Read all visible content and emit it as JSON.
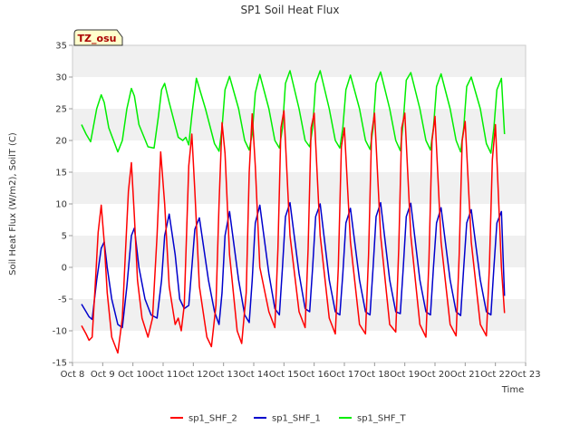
{
  "chart_data": {
    "type": "line",
    "title": "SP1 Soil Heat Flux",
    "xlabel": "Time",
    "ylabel": "Soil Heat Flux (W/m2), SoilT (C)",
    "ylim": [
      -15,
      35
    ],
    "yticks": [
      -15,
      -10,
      -5,
      0,
      5,
      10,
      15,
      20,
      25,
      30,
      35
    ],
    "xlim": [
      0,
      15
    ],
    "xticks": [
      0,
      1,
      2,
      3,
      4,
      5,
      6,
      7,
      8,
      9,
      10,
      11,
      12,
      13,
      14,
      15
    ],
    "xtick_labels": [
      "Oct 8",
      "Oct 9",
      "Oct 10",
      "Oct 11",
      "Oct 12",
      "Oct 13",
      "Oct 14",
      "Oct 15",
      "Oct 16",
      "Oct 17",
      "Oct 18",
      "Oct 19",
      "Oct 20",
      "Oct 21",
      "Oct 22",
      "Oct 23"
    ],
    "annotation": "TZ_osu",
    "grid": "horizontal bands",
    "legend_position": "bottom",
    "series": [
      {
        "name": "sp1_SHF_2",
        "color": "#ff0000",
        "x": [
          0.3,
          0.45,
          0.55,
          0.65,
          0.75,
          0.85,
          0.95,
          1.05,
          1.15,
          1.3,
          1.5,
          1.65,
          1.75,
          1.85,
          1.95,
          2.05,
          2.15,
          2.3,
          2.5,
          2.65,
          2.8,
          2.92,
          3.05,
          3.2,
          3.4,
          3.5,
          3.6,
          3.7,
          3.85,
          3.95,
          4.05,
          4.2,
          4.45,
          4.6,
          4.75,
          4.85,
          4.95,
          5.05,
          5.2,
          5.45,
          5.6,
          5.75,
          5.85,
          5.95,
          6.05,
          6.2,
          6.5,
          6.7,
          6.8,
          6.9,
          7.0,
          7.2,
          7.5,
          7.7,
          7.8,
          7.9,
          8.0,
          8.2,
          8.5,
          8.7,
          8.8,
          8.9,
          9.0,
          9.2,
          9.5,
          9.7,
          9.8,
          9.9,
          10.0,
          10.2,
          10.5,
          10.7,
          10.8,
          10.9,
          11.0,
          11.2,
          11.5,
          11.7,
          11.8,
          11.9,
          12.0,
          12.2,
          12.5,
          12.7,
          12.8,
          12.9,
          13.0,
          13.2,
          13.5,
          13.7,
          13.8,
          13.9,
          14.0,
          14.2,
          14.3
        ],
        "values": [
          -9.2,
          -10.5,
          -11.5,
          -11.0,
          -3.0,
          5.5,
          9.8,
          4.0,
          -4.0,
          -11.0,
          -13.5,
          -8.0,
          2.0,
          12.0,
          16.5,
          8.0,
          -2.0,
          -8.0,
          -11.0,
          -8.0,
          5.0,
          18.2,
          10.0,
          -3.0,
          -9.0,
          -8.0,
          -10.0,
          -6.0,
          16.0,
          21.0,
          12.0,
          -3.0,
          -11.0,
          -12.5,
          -6.0,
          10.0,
          22.8,
          18.0,
          2.0,
          -10.0,
          -12.0,
          -4.0,
          15.0,
          24.2,
          16.0,
          0.0,
          -7.0,
          -9.5,
          3.0,
          22.0,
          24.7,
          5.0,
          -7.0,
          -9.5,
          3.0,
          22.0,
          24.3,
          5.0,
          -8.0,
          -10.5,
          0.0,
          19.0,
          22.0,
          4.0,
          -9.0,
          -10.5,
          2.0,
          21.0,
          24.3,
          5.0,
          -9.0,
          -10.2,
          3.0,
          22.0,
          24.3,
          5.0,
          -9.0,
          -11.0,
          1.0,
          20.0,
          23.8,
          4.0,
          -9.0,
          -10.8,
          2.0,
          20.0,
          23.0,
          4.0,
          -9.0,
          -10.8,
          0.0,
          17.0,
          22.5,
          0.0,
          -7.2
        ]
      },
      {
        "name": "sp1_SHF_1",
        "color": "#0000cc",
        "x": [
          0.3,
          0.45,
          0.55,
          0.65,
          0.8,
          0.95,
          1.05,
          1.15,
          1.3,
          1.5,
          1.65,
          1.8,
          1.95,
          2.05,
          2.2,
          2.4,
          2.6,
          2.8,
          2.95,
          3.05,
          3.2,
          3.4,
          3.55,
          3.7,
          3.85,
          3.95,
          4.05,
          4.2,
          4.5,
          4.7,
          4.85,
          4.95,
          5.05,
          5.2,
          5.5,
          5.7,
          5.85,
          5.95,
          6.05,
          6.2,
          6.5,
          6.7,
          6.85,
          6.95,
          7.05,
          7.2,
          7.5,
          7.7,
          7.85,
          7.95,
          8.05,
          8.2,
          8.5,
          8.7,
          8.85,
          8.95,
          9.05,
          9.2,
          9.5,
          9.7,
          9.85,
          9.95,
          10.05,
          10.2,
          10.5,
          10.7,
          10.85,
          10.95,
          11.05,
          11.2,
          11.5,
          11.7,
          11.85,
          11.95,
          12.05,
          12.2,
          12.5,
          12.7,
          12.85,
          12.95,
          13.05,
          13.2,
          13.5,
          13.7,
          13.85,
          13.95,
          14.05,
          14.2,
          14.3
        ],
        "values": [
          -5.8,
          -7.0,
          -7.8,
          -8.2,
          -2.0,
          3.0,
          4.0,
          0.0,
          -5.0,
          -9.0,
          -9.5,
          -3.0,
          5.0,
          6.2,
          0.0,
          -5.0,
          -7.5,
          -8.0,
          -2.0,
          5.0,
          8.4,
          2.0,
          -5.0,
          -6.5,
          -6.0,
          0.0,
          6.0,
          7.8,
          -2.0,
          -7.0,
          -9.0,
          -4.0,
          5.0,
          8.8,
          -2.0,
          -7.5,
          -8.7,
          -2.0,
          7.0,
          9.8,
          -1.0,
          -6.5,
          -7.5,
          0.0,
          8.0,
          10.2,
          -1.0,
          -6.5,
          -7.0,
          0.0,
          8.0,
          10.0,
          -2.0,
          -7.0,
          -7.5,
          -1.0,
          7.0,
          9.3,
          -2.0,
          -7.0,
          -7.5,
          0.0,
          8.0,
          10.2,
          -2.0,
          -7.0,
          -7.3,
          0.0,
          8.0,
          10.1,
          -2.0,
          -7.0,
          -7.5,
          0.0,
          7.0,
          9.4,
          -2.0,
          -7.0,
          -7.6,
          0.0,
          7.0,
          9.1,
          -2.0,
          -7.0,
          -7.5,
          0.0,
          7.0,
          8.8,
          -4.5
        ]
      },
      {
        "name": "sp1_SHF_T",
        "color": "#00ee00",
        "x": [
          0.3,
          0.45,
          0.6,
          0.8,
          0.95,
          1.05,
          1.2,
          1.5,
          1.65,
          1.8,
          1.95,
          2.05,
          2.2,
          2.5,
          2.7,
          2.85,
          2.95,
          3.05,
          3.2,
          3.5,
          3.65,
          3.75,
          3.85,
          3.95,
          4.1,
          4.4,
          4.7,
          4.85,
          4.95,
          5.05,
          5.2,
          5.5,
          5.7,
          5.85,
          5.95,
          6.05,
          6.2,
          6.5,
          6.7,
          6.85,
          6.95,
          7.05,
          7.2,
          7.5,
          7.7,
          7.85,
          7.95,
          8.05,
          8.2,
          8.5,
          8.7,
          8.85,
          8.95,
          9.05,
          9.2,
          9.5,
          9.7,
          9.85,
          9.95,
          10.05,
          10.2,
          10.5,
          10.7,
          10.85,
          10.95,
          11.05,
          11.2,
          11.5,
          11.7,
          11.85,
          11.95,
          12.05,
          12.2,
          12.5,
          12.7,
          12.85,
          12.95,
          13.05,
          13.2,
          13.5,
          13.7,
          13.85,
          13.95,
          14.05,
          14.2,
          14.3
        ],
        "values": [
          22.5,
          21.0,
          19.8,
          25.0,
          27.2,
          26.0,
          22.0,
          18.2,
          20.0,
          25.0,
          28.2,
          27.0,
          22.5,
          19.0,
          18.8,
          24.0,
          28.0,
          29.0,
          26.0,
          20.5,
          20.0,
          20.5,
          19.3,
          24.0,
          29.8,
          25.0,
          19.5,
          18.3,
          22.0,
          28.0,
          30.1,
          25.0,
          20.0,
          18.5,
          21.0,
          27.5,
          30.4,
          25.0,
          20.0,
          18.8,
          22.0,
          29.0,
          31.0,
          25.0,
          20.0,
          19.0,
          22.0,
          29.0,
          31.0,
          25.0,
          20.0,
          18.8,
          22.0,
          28.0,
          30.3,
          25.0,
          20.0,
          18.6,
          22.0,
          29.0,
          30.8,
          25.0,
          20.0,
          18.4,
          23.0,
          29.5,
          30.7,
          25.0,
          20.0,
          18.5,
          22.0,
          28.5,
          30.5,
          25.0,
          20.0,
          18.2,
          22.0,
          28.5,
          30.0,
          25.0,
          19.5,
          18.0,
          22.0,
          28.0,
          29.8,
          21.0
        ]
      }
    ]
  }
}
